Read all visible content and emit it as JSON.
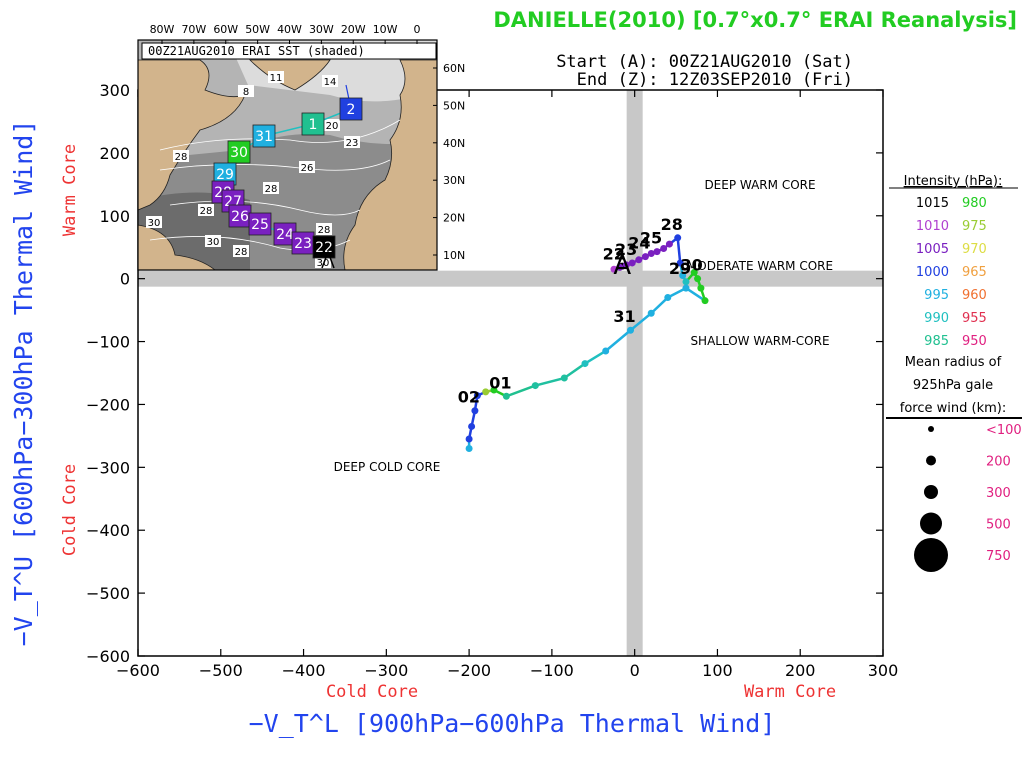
{
  "title": "DANIELLE(2010) [0.7°x0.7° ERAI Reanalysis]",
  "start_text": "Start (A): 00Z21AUG2010 (Sat)",
  "end_text": "End (Z): 12Z03SEP2010 (Fri)",
  "inset_label": "00Z21AUG2010 ERAI SST (shaded)",
  "inset_lon_ticks": [
    "80W",
    "70W",
    "60W",
    "50W",
    "40W",
    "30W",
    "20W",
    "10W",
    "0"
  ],
  "inset_lat_ticks": [
    "60N",
    "50N",
    "40N",
    "30N",
    "20N",
    "10N"
  ],
  "inset_sst_labels": [
    "11",
    "14",
    "8",
    "20",
    "23",
    "28",
    "26",
    "28",
    "28",
    "28",
    "30",
    "30",
    "28",
    "30"
  ],
  "quadrants": {
    "deep_warm": "DEEP WARM CORE",
    "moderate_warm": "MODERATE WARM CORE",
    "shallow_warm": "SHALLOW WARM-CORE",
    "deep_cold": "DEEP COLD CORE"
  },
  "legend": {
    "intensity_title": "Intensity (hPa):",
    "intensity": [
      {
        "left": "1015",
        "left_color": "#000000",
        "right": "980",
        "right_color": "#22cc22"
      },
      {
        "left": "1010",
        "left_color": "#b040d0",
        "right": "975",
        "right_color": "#99cc33"
      },
      {
        "left": "1005",
        "left_color": "#7a20c0",
        "right": "970",
        "right_color": "#dddd44"
      },
      {
        "left": "1000",
        "left_color": "#2040e0",
        "right": "965",
        "right_color": "#f0a040"
      },
      {
        "left": "995",
        "left_color": "#20b0e0",
        "right": "960",
        "right_color": "#f07030"
      },
      {
        "left": "990",
        "left_color": "#20c0c0",
        "right": "955",
        "right_color": "#e03050"
      },
      {
        "left": "985",
        "left_color": "#20c090",
        "right": "950",
        "right_color": "#e02080"
      }
    ],
    "radius_title_1": "Mean radius of",
    "radius_title_2": "925hPa gale",
    "radius_title_3": "force wind (km):",
    "radius": [
      {
        "label": "<100",
        "r": 3
      },
      {
        "label": "200",
        "r": 5
      },
      {
        "label": "300",
        "r": 7
      },
      {
        "label": "500",
        "r": 11
      },
      {
        "label": "750",
        "r": 17
      }
    ],
    "radius_color": "#e02080"
  },
  "colors": {
    "title": "#22cc22",
    "axis_label": "#2244ee",
    "core_label": "#ee3333",
    "track": "#20c0c0"
  },
  "chart_data": {
    "type": "scatter",
    "title": "DANIELLE(2010) [0.7°x0.7° ERAI Reanalysis]",
    "xlabel": "−V_T^L [900hPa−600hPa Thermal Wind]",
    "ylabel": "−V_T^U [600hPa−300hPa Thermal Wind]",
    "x_side_labels": [
      "Cold Core",
      "Warm Core"
    ],
    "y_side_labels": [
      "Cold Core",
      "Warm Core"
    ],
    "xlim": [
      -600,
      300
    ],
    "ylim": [
      -600,
      300
    ],
    "xticks": [
      -600,
      -500,
      -400,
      -300,
      -200,
      -100,
      0,
      100,
      200,
      300
    ],
    "yticks": [
      -600,
      -500,
      -400,
      -300,
      -200,
      -100,
      0,
      100,
      200,
      300
    ],
    "xtick_labels": [
      "−600",
      "−500",
      "−400",
      "−300",
      "−200",
      "−100",
      "0",
      "100",
      "200",
      "300"
    ],
    "ytick_labels": [
      "−600",
      "−500",
      "−400",
      "−300",
      "−200",
      "−100",
      "0",
      "100",
      "200",
      "300"
    ],
    "track": [
      {
        "x": -15,
        "y": 20,
        "label": "A",
        "color": "#000000"
      },
      {
        "x": -25,
        "y": 15,
        "color": "#b040d0"
      },
      {
        "x": -18,
        "y": 18,
        "label": "22",
        "color": "#7a20c0"
      },
      {
        "x": -10,
        "y": 22,
        "color": "#7a20c0"
      },
      {
        "x": -3,
        "y": 25,
        "label": "23",
        "color": "#7a20c0"
      },
      {
        "x": 5,
        "y": 30,
        "color": "#7a20c0"
      },
      {
        "x": 13,
        "y": 35,
        "label": "24",
        "color": "#7a20c0"
      },
      {
        "x": 20,
        "y": 40,
        "color": "#7a20c0"
      },
      {
        "x": 27,
        "y": 43,
        "label": "25",
        "color": "#7a20c0"
      },
      {
        "x": 35,
        "y": 48,
        "color": "#7a20c0"
      },
      {
        "x": 42,
        "y": 55,
        "color": "#7a20c0"
      },
      {
        "x": 52,
        "y": 65,
        "label": "28",
        "color": "#2040e0"
      },
      {
        "x": 55,
        "y": 25,
        "color": "#2040e0"
      },
      {
        "x": 58,
        "y": 5,
        "color": "#20b0e0"
      },
      {
        "x": 62,
        "y": -5,
        "label": "29",
        "color": "#20c0c0"
      },
      {
        "x": 72,
        "y": 10,
        "color": "#22cc22"
      },
      {
        "x": 76,
        "y": 0,
        "label": "30",
        "color": "#22cc22"
      },
      {
        "x": 80,
        "y": -15,
        "color": "#22cc22"
      },
      {
        "x": 85,
        "y": -35,
        "color": "#22cc22"
      },
      {
        "x": 62,
        "y": -15,
        "color": "#20b0e0"
      },
      {
        "x": 40,
        "y": -30,
        "color": "#20b0e0"
      },
      {
        "x": 20,
        "y": -55,
        "color": "#20b0e0"
      },
      {
        "x": -5,
        "y": -82,
        "label": "31",
        "color": "#20b0e0"
      },
      {
        "x": -35,
        "y": -115,
        "color": "#20b0e0"
      },
      {
        "x": -60,
        "y": -135,
        "color": "#20c0c0"
      },
      {
        "x": -85,
        "y": -158,
        "color": "#20c0a0"
      },
      {
        "x": -120,
        "y": -170,
        "color": "#20c0a0"
      },
      {
        "x": -155,
        "y": -187,
        "label": "01",
        "color": "#20c090"
      },
      {
        "x": -170,
        "y": -177,
        "color": "#22cc22"
      },
      {
        "x": -180,
        "y": -180,
        "color": "#99cc33"
      },
      {
        "x": -190,
        "y": -186,
        "color": "#2040e0"
      },
      {
        "x": -193,
        "y": -210,
        "label": "02",
        "color": "#2040e0"
      },
      {
        "x": -197,
        "y": -235,
        "color": "#2040e0"
      },
      {
        "x": -200,
        "y": -255,
        "color": "#2040e0"
      },
      {
        "x": -200,
        "y": -270,
        "color": "#20b0e0"
      }
    ]
  }
}
